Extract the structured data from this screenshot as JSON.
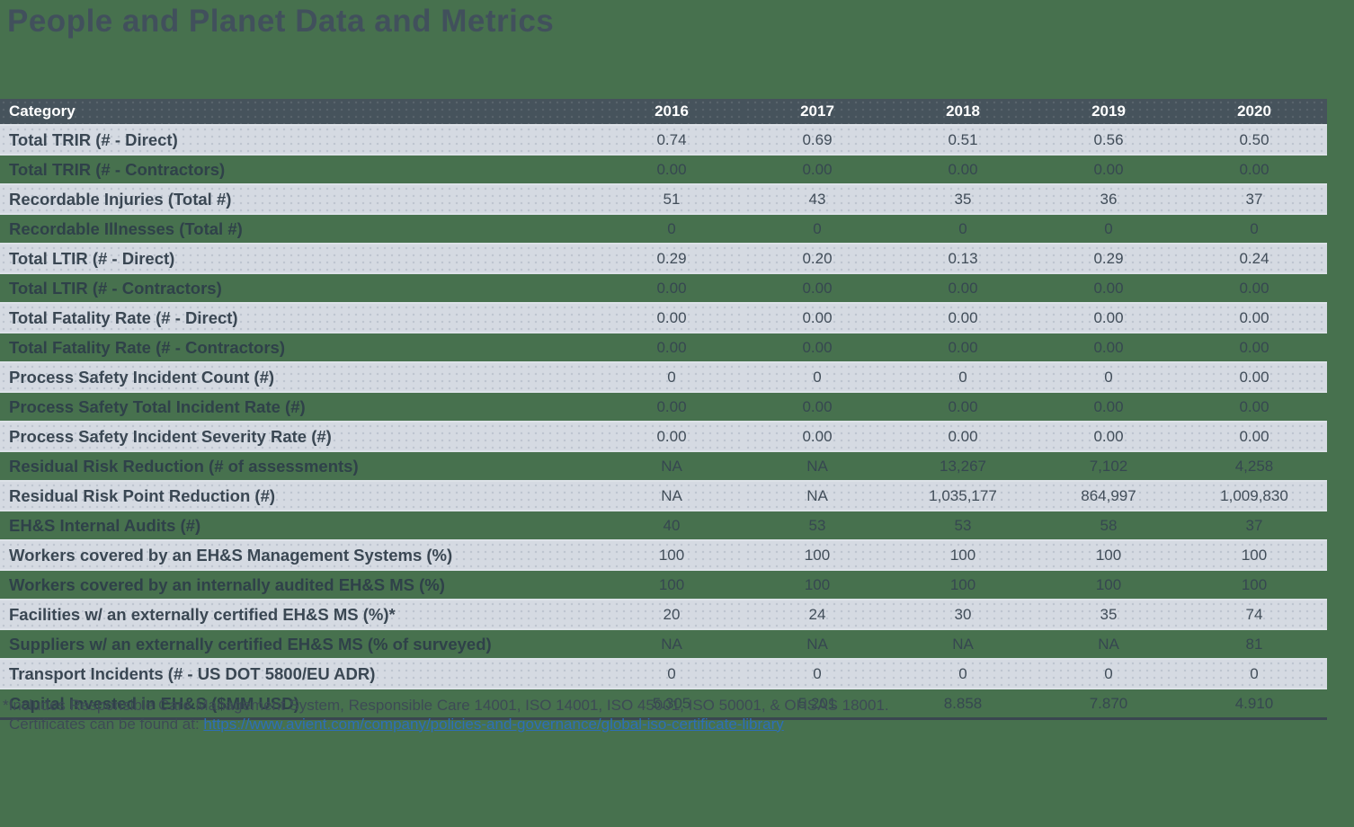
{
  "page": {
    "title": "People and Planet Data and Metrics"
  },
  "colors": {
    "page_background": "#47714E",
    "header_background": "#46535C",
    "light_row_background": "#D5DAE2",
    "title_text": "#41505C",
    "dark_text": "#3A4753",
    "link_blue": "#2D6FB8"
  },
  "table": {
    "columns": [
      "Category",
      "2016",
      "2017",
      "2018",
      "2019",
      "2020"
    ],
    "rows": [
      {
        "label": "Total TRIR (# - Direct)",
        "values": [
          "0.74",
          "0.69",
          "0.51",
          "0.56",
          "0.50"
        ],
        "variant": "light"
      },
      {
        "label": "Total TRIR (# - Contractors)",
        "values": [
          "0.00",
          "0.00",
          "0.00",
          "0.00",
          "0.00"
        ],
        "variant": "green"
      },
      {
        "label": "Recordable Injuries (Total #)",
        "values": [
          "51",
          "43",
          "35",
          "36",
          "37"
        ],
        "variant": "light"
      },
      {
        "label": "Recordable Illnesses (Total #)",
        "values": [
          "0",
          "0",
          "0",
          "0",
          "0"
        ],
        "variant": "green"
      },
      {
        "label": "Total LTIR (# - Direct)",
        "values": [
          "0.29",
          "0.20",
          "0.13",
          "0.29",
          "0.24"
        ],
        "variant": "light"
      },
      {
        "label": "Total LTIR (# - Contractors)",
        "values": [
          "0.00",
          "0.00",
          "0.00",
          "0.00",
          "0.00"
        ],
        "variant": "green"
      },
      {
        "label": "Total Fatality Rate (# - Direct)",
        "values": [
          "0.00",
          "0.00",
          "0.00",
          "0.00",
          "0.00"
        ],
        "variant": "light"
      },
      {
        "label": "Total Fatality Rate (# - Contractors)",
        "values": [
          "0.00",
          "0.00",
          "0.00",
          "0.00",
          "0.00"
        ],
        "variant": "green"
      },
      {
        "label": "Process Safety Incident Count (#)",
        "values": [
          "0",
          "0",
          "0",
          "0",
          "0.00"
        ],
        "variant": "light"
      },
      {
        "label": "Process Safety Total Incident Rate (#)",
        "values": [
          "0.00",
          "0.00",
          "0.00",
          "0.00",
          "0.00"
        ],
        "variant": "green"
      },
      {
        "label": "Process Safety Incident Severity Rate (#)",
        "values": [
          "0.00",
          "0.00",
          "0.00",
          "0.00",
          "0.00"
        ],
        "variant": "light"
      },
      {
        "label": "Residual Risk Reduction (# of assessments)",
        "values": [
          "NA",
          "NA",
          "13,267",
          "7,102",
          "4,258"
        ],
        "variant": "green"
      },
      {
        "label": "Residual Risk Point Reduction (#)",
        "values": [
          "NA",
          "NA",
          "1,035,177",
          "864,997",
          "1,009,830"
        ],
        "variant": "light"
      },
      {
        "label": "EH&S Internal Audits (#)",
        "values": [
          "40",
          "53",
          "53",
          "58",
          "37"
        ],
        "variant": "green"
      },
      {
        "label": "Workers covered by an EH&S Management Systems (%)",
        "values": [
          "100",
          "100",
          "100",
          "100",
          "100"
        ],
        "variant": "light"
      },
      {
        "label": "Workers covered by an internally audited EH&S MS (%)",
        "values": [
          "100",
          "100",
          "100",
          "100",
          "100"
        ],
        "variant": "green"
      },
      {
        "label": "Facilities w/ an externally certified EH&S MS (%)*",
        "values": [
          "20",
          "24",
          "30",
          "35",
          "74"
        ],
        "variant": "light"
      },
      {
        "label": "Suppliers w/ an externally certified EH&S MS (% of surveyed)",
        "values": [
          "NA",
          "NA",
          "NA",
          "NA",
          "81"
        ],
        "variant": "green"
      },
      {
        "label": "Transport Incidents (# - US DOT 5800/EU ADR)",
        "values": [
          "0",
          "0",
          "0",
          "0",
          "0"
        ],
        "variant": "light"
      },
      {
        "label": "Capital Invested in EH&S ($MM USD)",
        "values": [
          "5.305",
          "5.201",
          "8.858",
          "7.870",
          "4.910"
        ],
        "variant": "green"
      }
    ]
  },
  "footnote": {
    "line1": "*Includes Responsible Care Management System, Responsible Care 14001, ISO 14001, ISO 45001, ISO 50001, & OHSAS 18001.",
    "line2_prefix": "Certificates can be found at: ",
    "link_text": "https://www.avient.com/company/policies-and-governance/global-iso-certificate-library"
  }
}
